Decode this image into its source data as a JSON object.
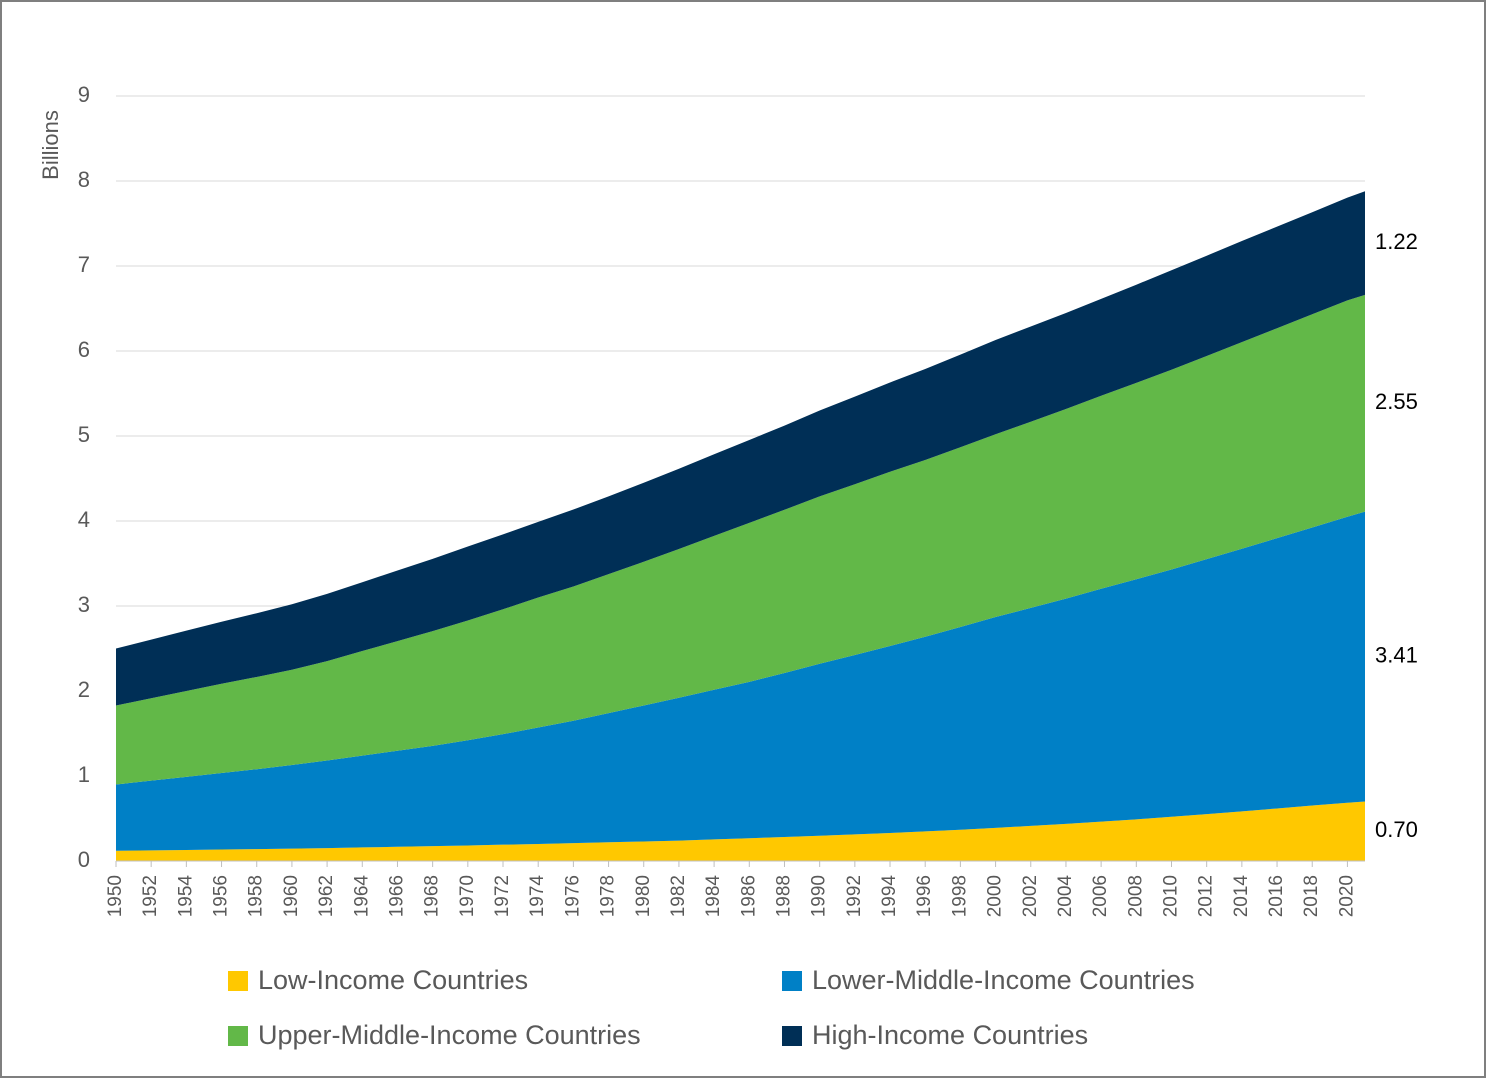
{
  "chart_data": {
    "type": "stacked_area",
    "y_label": "Billions",
    "x": [
      1950,
      1952,
      1954,
      1956,
      1958,
      1960,
      1962,
      1964,
      1966,
      1968,
      1970,
      1972,
      1974,
      1976,
      1978,
      1980,
      1982,
      1984,
      1986,
      1988,
      1990,
      1992,
      1994,
      1996,
      1998,
      2000,
      2002,
      2004,
      2006,
      2008,
      2010,
      2012,
      2014,
      2016,
      2018,
      2020,
      2021
    ],
    "xlim": [
      1950,
      2021
    ],
    "xticks": [
      1950,
      1952,
      1954,
      1956,
      1958,
      1960,
      1962,
      1964,
      1966,
      1968,
      1970,
      1972,
      1974,
      1976,
      1978,
      1980,
      1982,
      1984,
      1986,
      1988,
      1990,
      1992,
      1994,
      1996,
      1998,
      2000,
      2002,
      2004,
      2006,
      2008,
      2010,
      2012,
      2014,
      2016,
      2018,
      2020
    ],
    "ylim": [
      0,
      9
    ],
    "yticks": [
      0,
      1,
      2,
      3,
      4,
      5,
      6,
      7,
      8,
      9
    ],
    "grid": true,
    "legend": "bottom",
    "series": [
      {
        "name": "Low-Income Countries",
        "color": "#ffc800",
        "values": [
          0.12,
          0.125,
          0.13,
          0.135,
          0.14,
          0.145,
          0.152,
          0.16,
          0.167,
          0.175,
          0.183,
          0.192,
          0.2,
          0.21,
          0.22,
          0.23,
          0.24,
          0.255,
          0.268,
          0.282,
          0.297,
          0.313,
          0.33,
          0.348,
          0.368,
          0.39,
          0.413,
          0.437,
          0.463,
          0.49,
          0.52,
          0.551,
          0.584,
          0.618,
          0.653,
          0.685,
          0.7
        ],
        "value_labels": [
          null,
          null,
          null,
          null,
          null,
          null,
          null,
          null,
          null,
          null,
          null,
          null,
          null,
          null,
          null,
          null,
          null,
          null,
          null,
          null,
          null,
          null,
          null,
          null,
          null,
          null,
          null,
          null,
          null,
          null,
          null,
          null,
          null,
          null,
          null,
          null,
          "0.70"
        ]
      },
      {
        "name": "Lower-Middle-Income Countries",
        "color": "#0080c6",
        "values": [
          0.78,
          0.82,
          0.86,
          0.9,
          0.94,
          0.985,
          1.03,
          1.08,
          1.13,
          1.18,
          1.237,
          1.3,
          1.37,
          1.44,
          1.52,
          1.6,
          1.68,
          1.76,
          1.84,
          1.93,
          2.023,
          2.11,
          2.2,
          2.29,
          2.385,
          2.48,
          2.565,
          2.65,
          2.74,
          2.825,
          2.91,
          3.0,
          3.09,
          3.18,
          3.27,
          3.365,
          3.41
        ],
        "value_labels": [
          null,
          null,
          null,
          null,
          null,
          null,
          null,
          null,
          null,
          null,
          null,
          null,
          null,
          null,
          null,
          null,
          null,
          null,
          null,
          null,
          null,
          null,
          null,
          null,
          null,
          null,
          null,
          null,
          null,
          null,
          null,
          null,
          null,
          null,
          null,
          null,
          "3.41"
        ]
      },
      {
        "name": "Upper-Middle-Income Countries",
        "color": "#62b848",
        "values": [
          0.93,
          0.97,
          1.01,
          1.05,
          1.085,
          1.12,
          1.17,
          1.23,
          1.29,
          1.35,
          1.41,
          1.47,
          1.53,
          1.58,
          1.635,
          1.69,
          1.75,
          1.81,
          1.87,
          1.92,
          1.97,
          2.01,
          2.05,
          2.08,
          2.115,
          2.15,
          2.19,
          2.23,
          2.27,
          2.31,
          2.35,
          2.39,
          2.43,
          2.47,
          2.51,
          2.545,
          2.55
        ],
        "value_labels": [
          null,
          null,
          null,
          null,
          null,
          null,
          null,
          null,
          null,
          null,
          null,
          null,
          null,
          null,
          null,
          null,
          null,
          null,
          null,
          null,
          null,
          null,
          null,
          null,
          null,
          null,
          null,
          null,
          null,
          null,
          null,
          null,
          null,
          null,
          null,
          null,
          "2.55"
        ]
      },
      {
        "name": "High-Income Countries",
        "color": "#002f56",
        "values": [
          0.67,
          0.69,
          0.71,
          0.73,
          0.75,
          0.77,
          0.79,
          0.81,
          0.83,
          0.85,
          0.87,
          0.88,
          0.89,
          0.905,
          0.915,
          0.93,
          0.945,
          0.96,
          0.975,
          0.99,
          1.01,
          1.03,
          1.05,
          1.07,
          1.09,
          1.11,
          1.12,
          1.13,
          1.14,
          1.155,
          1.17,
          1.18,
          1.19,
          1.195,
          1.2,
          1.21,
          1.22
        ],
        "value_labels": [
          null,
          null,
          null,
          null,
          null,
          null,
          null,
          null,
          null,
          null,
          null,
          null,
          null,
          null,
          null,
          null,
          null,
          null,
          null,
          null,
          null,
          null,
          null,
          null,
          null,
          null,
          null,
          null,
          null,
          null,
          null,
          null,
          null,
          null,
          null,
          null,
          "1.22"
        ]
      }
    ]
  }
}
